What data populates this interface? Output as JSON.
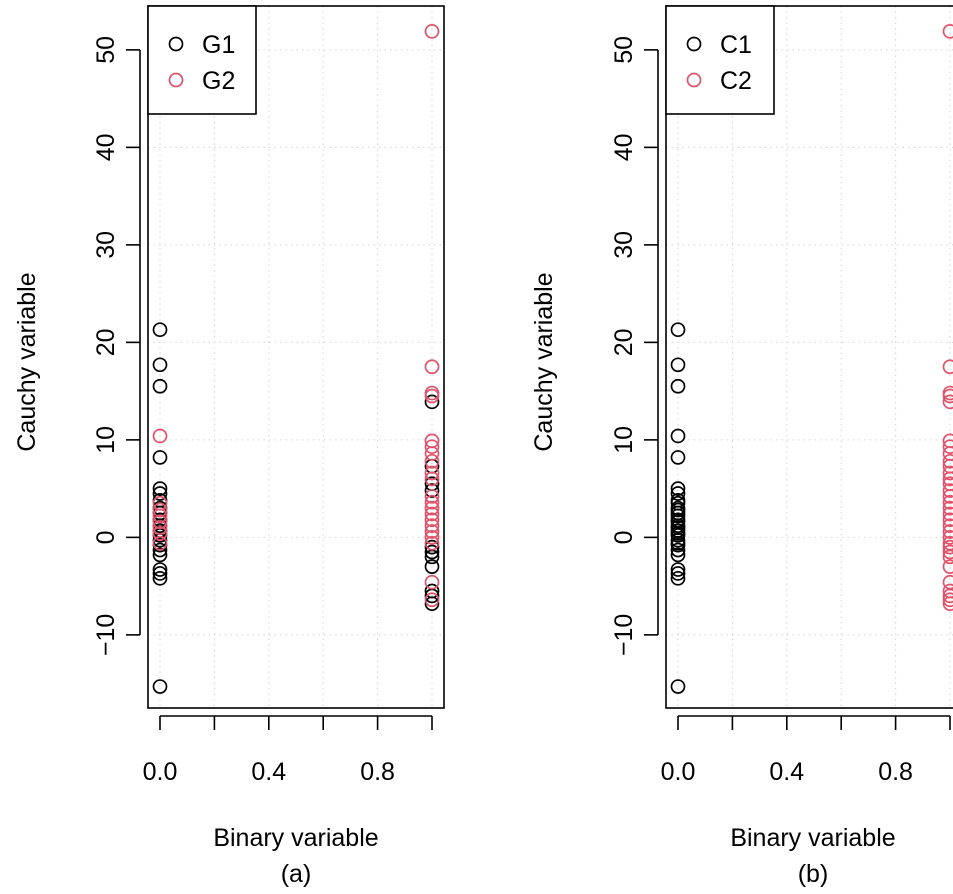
{
  "chart_data": [
    {
      "type": "scatter",
      "panel_label": "(a)",
      "xlabel": "Binary variable",
      "ylabel": "Cauchy variable",
      "xlim": [
        0,
        1
      ],
      "ylim": [
        -17.5,
        54.5
      ],
      "x_ticks": [
        0.0,
        0.2,
        0.4,
        0.6,
        0.8,
        1.0
      ],
      "x_tick_labels": [
        "0.0",
        "",
        "0.4",
        "",
        "0.8",
        ""
      ],
      "y_ticks": [
        -10,
        0,
        10,
        20,
        30,
        40,
        50
      ],
      "y_tick_labels": [
        "−10",
        "0",
        "10",
        "20",
        "30",
        "40",
        "50"
      ],
      "grid": true,
      "legend_position": "top-left",
      "series": [
        {
          "name": "G1",
          "color": "#000000",
          "points": [
            {
              "x": 0,
              "y": 21.3
            },
            {
              "x": 0,
              "y": 17.7
            },
            {
              "x": 0,
              "y": 15.5
            },
            {
              "x": 0,
              "y": 8.2
            },
            {
              "x": 0,
              "y": 5.0
            },
            {
              "x": 0,
              "y": 4.5
            },
            {
              "x": 0,
              "y": 3.8
            },
            {
              "x": 0,
              "y": 3.0
            },
            {
              "x": 0,
              "y": 2.5
            },
            {
              "x": 0,
              "y": 1.8
            },
            {
              "x": 0,
              "y": 1.2
            },
            {
              "x": 0,
              "y": 0.7
            },
            {
              "x": 0,
              "y": 0.2
            },
            {
              "x": 0,
              "y": -0.3
            },
            {
              "x": 0,
              "y": -0.8
            },
            {
              "x": 0,
              "y": -1.3
            },
            {
              "x": 0,
              "y": -1.8
            },
            {
              "x": 0,
              "y": -3.3
            },
            {
              "x": 0,
              "y": -3.7
            },
            {
              "x": 0,
              "y": -4.2
            },
            {
              "x": 0,
              "y": -15.3
            },
            {
              "x": 1,
              "y": 13.9
            },
            {
              "x": 1,
              "y": 7.3
            },
            {
              "x": 1,
              "y": 5.5
            },
            {
              "x": 1,
              "y": 4.8
            },
            {
              "x": 1,
              "y": -1.0
            },
            {
              "x": 1,
              "y": -1.5
            },
            {
              "x": 1,
              "y": -2.0
            },
            {
              "x": 1,
              "y": -3.0
            },
            {
              "x": 1,
              "y": -5.5
            },
            {
              "x": 1,
              "y": -6.0
            },
            {
              "x": 1,
              "y": -6.8
            }
          ]
        },
        {
          "name": "G2",
          "color": "#df536b",
          "points": [
            {
              "x": 0,
              "y": 10.4
            },
            {
              "x": 0,
              "y": 3.5
            },
            {
              "x": 0,
              "y": 2.8
            },
            {
              "x": 0,
              "y": 2.2
            },
            {
              "x": 0,
              "y": 1.6
            },
            {
              "x": 0,
              "y": 1.0
            },
            {
              "x": 0,
              "y": 0.4
            },
            {
              "x": 0,
              "y": -0.6
            },
            {
              "x": 1,
              "y": 51.9
            },
            {
              "x": 1,
              "y": 17.5
            },
            {
              "x": 1,
              "y": 14.8
            },
            {
              "x": 1,
              "y": 14.5
            },
            {
              "x": 1,
              "y": 9.9
            },
            {
              "x": 1,
              "y": 9.3
            },
            {
              "x": 1,
              "y": 8.6
            },
            {
              "x": 1,
              "y": 7.8
            },
            {
              "x": 1,
              "y": 6.6
            },
            {
              "x": 1,
              "y": 6.0
            },
            {
              "x": 1,
              "y": 4.2
            },
            {
              "x": 1,
              "y": 3.6
            },
            {
              "x": 1,
              "y": 3.0
            },
            {
              "x": 1,
              "y": 2.4
            },
            {
              "x": 1,
              "y": 1.8
            },
            {
              "x": 1,
              "y": 1.2
            },
            {
              "x": 1,
              "y": 0.6
            },
            {
              "x": 1,
              "y": 0.0
            },
            {
              "x": 1,
              "y": -0.6
            },
            {
              "x": 1,
              "y": -4.6
            },
            {
              "x": 1,
              "y": -6.4
            }
          ]
        }
      ]
    },
    {
      "type": "scatter",
      "panel_label": "(b)",
      "xlabel": "Binary variable",
      "ylabel": "Cauchy variable",
      "xlim": [
        0,
        1
      ],
      "ylim": [
        -17.5,
        54.5
      ],
      "x_ticks": [
        0.0,
        0.2,
        0.4,
        0.6,
        0.8,
        1.0
      ],
      "x_tick_labels": [
        "0.0",
        "",
        "0.4",
        "",
        "0.8",
        ""
      ],
      "y_ticks": [
        -10,
        0,
        10,
        20,
        30,
        40,
        50
      ],
      "y_tick_labels": [
        "−10",
        "0",
        "10",
        "20",
        "30",
        "40",
        "50"
      ],
      "grid": true,
      "legend_position": "top-left",
      "series": [
        {
          "name": "C1",
          "color": "#000000",
          "points": [
            {
              "x": 0,
              "y": 21.3
            },
            {
              "x": 0,
              "y": 17.7
            },
            {
              "x": 0,
              "y": 15.5
            },
            {
              "x": 0,
              "y": 10.4
            },
            {
              "x": 0,
              "y": 8.2
            },
            {
              "x": 0,
              "y": 5.0
            },
            {
              "x": 0,
              "y": 4.5
            },
            {
              "x": 0,
              "y": 3.8
            },
            {
              "x": 0,
              "y": 3.5
            },
            {
              "x": 0,
              "y": 3.0
            },
            {
              "x": 0,
              "y": 2.8
            },
            {
              "x": 0,
              "y": 2.5
            },
            {
              "x": 0,
              "y": 2.2
            },
            {
              "x": 0,
              "y": 1.8
            },
            {
              "x": 0,
              "y": 1.6
            },
            {
              "x": 0,
              "y": 1.2
            },
            {
              "x": 0,
              "y": 1.0
            },
            {
              "x": 0,
              "y": 0.7
            },
            {
              "x": 0,
              "y": 0.4
            },
            {
              "x": 0,
              "y": 0.2
            },
            {
              "x": 0,
              "y": -0.3
            },
            {
              "x": 0,
              "y": -0.6
            },
            {
              "x": 0,
              "y": -0.8
            },
            {
              "x": 0,
              "y": -1.3
            },
            {
              "x": 0,
              "y": -1.8
            },
            {
              "x": 0,
              "y": -3.3
            },
            {
              "x": 0,
              "y": -3.7
            },
            {
              "x": 0,
              "y": -4.2
            },
            {
              "x": 0,
              "y": -15.3
            }
          ]
        },
        {
          "name": "C2",
          "color": "#df536b",
          "points": [
            {
              "x": 1,
              "y": 51.9
            },
            {
              "x": 1,
              "y": 17.5
            },
            {
              "x": 1,
              "y": 14.8
            },
            {
              "x": 1,
              "y": 14.5
            },
            {
              "x": 1,
              "y": 13.9
            },
            {
              "x": 1,
              "y": 9.9
            },
            {
              "x": 1,
              "y": 9.3
            },
            {
              "x": 1,
              "y": 8.6
            },
            {
              "x": 1,
              "y": 7.8
            },
            {
              "x": 1,
              "y": 7.3
            },
            {
              "x": 1,
              "y": 6.6
            },
            {
              "x": 1,
              "y": 6.0
            },
            {
              "x": 1,
              "y": 5.5
            },
            {
              "x": 1,
              "y": 4.8
            },
            {
              "x": 1,
              "y": 4.2
            },
            {
              "x": 1,
              "y": 3.6
            },
            {
              "x": 1,
              "y": 3.0
            },
            {
              "x": 1,
              "y": 2.4
            },
            {
              "x": 1,
              "y": 1.8
            },
            {
              "x": 1,
              "y": 1.2
            },
            {
              "x": 1,
              "y": 0.6
            },
            {
              "x": 1,
              "y": 0.0
            },
            {
              "x": 1,
              "y": -0.6
            },
            {
              "x": 1,
              "y": -1.0
            },
            {
              "x": 1,
              "y": -1.5
            },
            {
              "x": 1,
              "y": -2.0
            },
            {
              "x": 1,
              "y": -3.0
            },
            {
              "x": 1,
              "y": -4.6
            },
            {
              "x": 1,
              "y": -5.5
            },
            {
              "x": 1,
              "y": -6.0
            },
            {
              "x": 1,
              "y": -6.4
            },
            {
              "x": 1,
              "y": -6.8
            }
          ]
        }
      ]
    }
  ]
}
